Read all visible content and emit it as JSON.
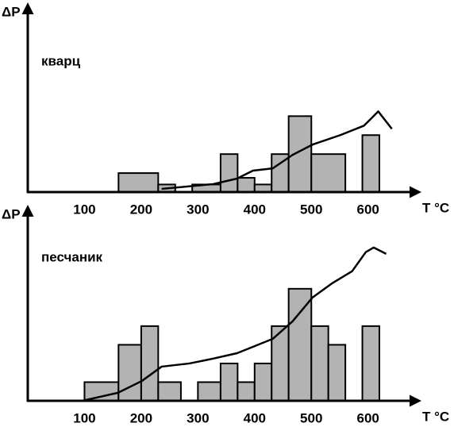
{
  "chart_data": [
    {
      "type": "histogram",
      "annotation": "кварц",
      "ylabel": "ΔP",
      "xlabel": "T °C",
      "xlim": [
        0,
        690
      ],
      "xticks": [
        100,
        200,
        300,
        400,
        500,
        600
      ],
      "ylim": [
        0,
        9.7
      ],
      "bins": [
        160,
        230,
        260,
        290,
        340,
        370,
        400,
        430,
        460,
        500,
        560,
        590,
        620
      ],
      "counts": [
        1,
        0.4,
        0,
        0.4,
        2,
        0.75,
        0.4,
        2,
        4,
        2,
        0,
        3
      ],
      "color": "#b3b3b3",
      "line": {
        "color": "#000000",
        "x": [
          236,
          327,
          369,
          397,
          432,
          467,
          502,
          551,
          593,
          618,
          642
        ],
        "values": [
          0.17,
          0.42,
          0.71,
          1.13,
          1.25,
          1.96,
          2.5,
          3,
          3.5,
          4.25,
          3.33
        ]
      }
    },
    {
      "type": "histogram",
      "annotation": "песчаник",
      "ylabel": "ΔP",
      "xlabel": "T °C",
      "xlim": [
        0,
        690
      ],
      "xticks": [
        100,
        200,
        300,
        400,
        500,
        600
      ],
      "ylim": [
        0,
        10.2
      ],
      "bins": [
        100,
        160,
        200,
        230,
        270,
        300,
        340,
        370,
        400,
        430,
        460,
        500,
        530,
        560,
        590,
        620
      ],
      "counts": [
        1,
        3,
        4,
        1,
        0,
        1,
        2,
        1,
        2,
        4,
        6,
        4,
        3,
        0,
        4
      ],
      "color": "#b3b3b3",
      "line": {
        "color": "#000000",
        "x": [
          96,
          159,
          201,
          236,
          285,
          327,
          369,
          397,
          432,
          467,
          502,
          537,
          572,
          596,
          610,
          632
        ],
        "values": [
          0,
          0.43,
          1.06,
          1.83,
          2.0,
          2.26,
          2.55,
          2.89,
          3.32,
          4.26,
          5.53,
          6.3,
          6.94,
          7.96,
          8.21,
          7.87
        ]
      }
    }
  ]
}
